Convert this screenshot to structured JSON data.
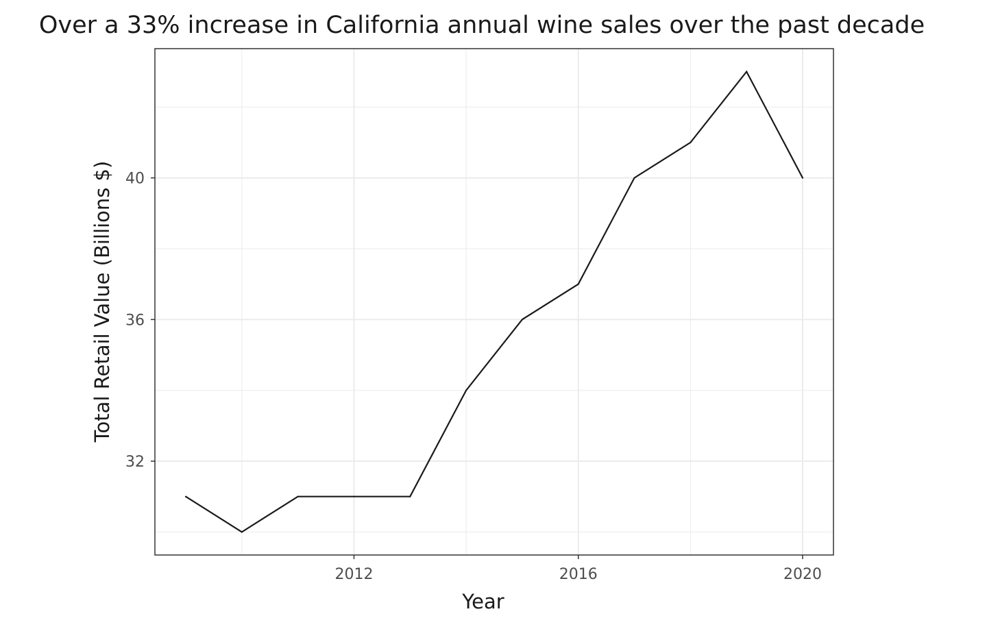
{
  "chart_data": {
    "type": "line",
    "title": "Over a 33% increase in California annual wine sales over the past decade",
    "xlabel": "Year",
    "ylabel": "Total Retail Value (Billions $)",
    "x": [
      2009,
      2010,
      2011,
      2012,
      2013,
      2014,
      2015,
      2016,
      2017,
      2018,
      2019,
      2020
    ],
    "series": [
      {
        "values": [
          31,
          30,
          31,
          31,
          31,
          34,
          36,
          37,
          40,
          41,
          43,
          40
        ]
      }
    ],
    "xlim": [
      2008.45,
      2020.55
    ],
    "ylim": [
      29.35,
      43.65
    ],
    "x_ticks": [
      2012,
      2016,
      2020
    ],
    "y_ticks": [
      32,
      36,
      40
    ],
    "x_minor_ticks": [
      2010,
      2014,
      2018
    ],
    "y_minor_ticks": [
      30,
      34,
      38,
      42
    ],
    "grid": true,
    "legend": "none",
    "line_color": "#1a1a1a",
    "grid_color": "#ebebeb",
    "panel_border_color": "#333333"
  }
}
